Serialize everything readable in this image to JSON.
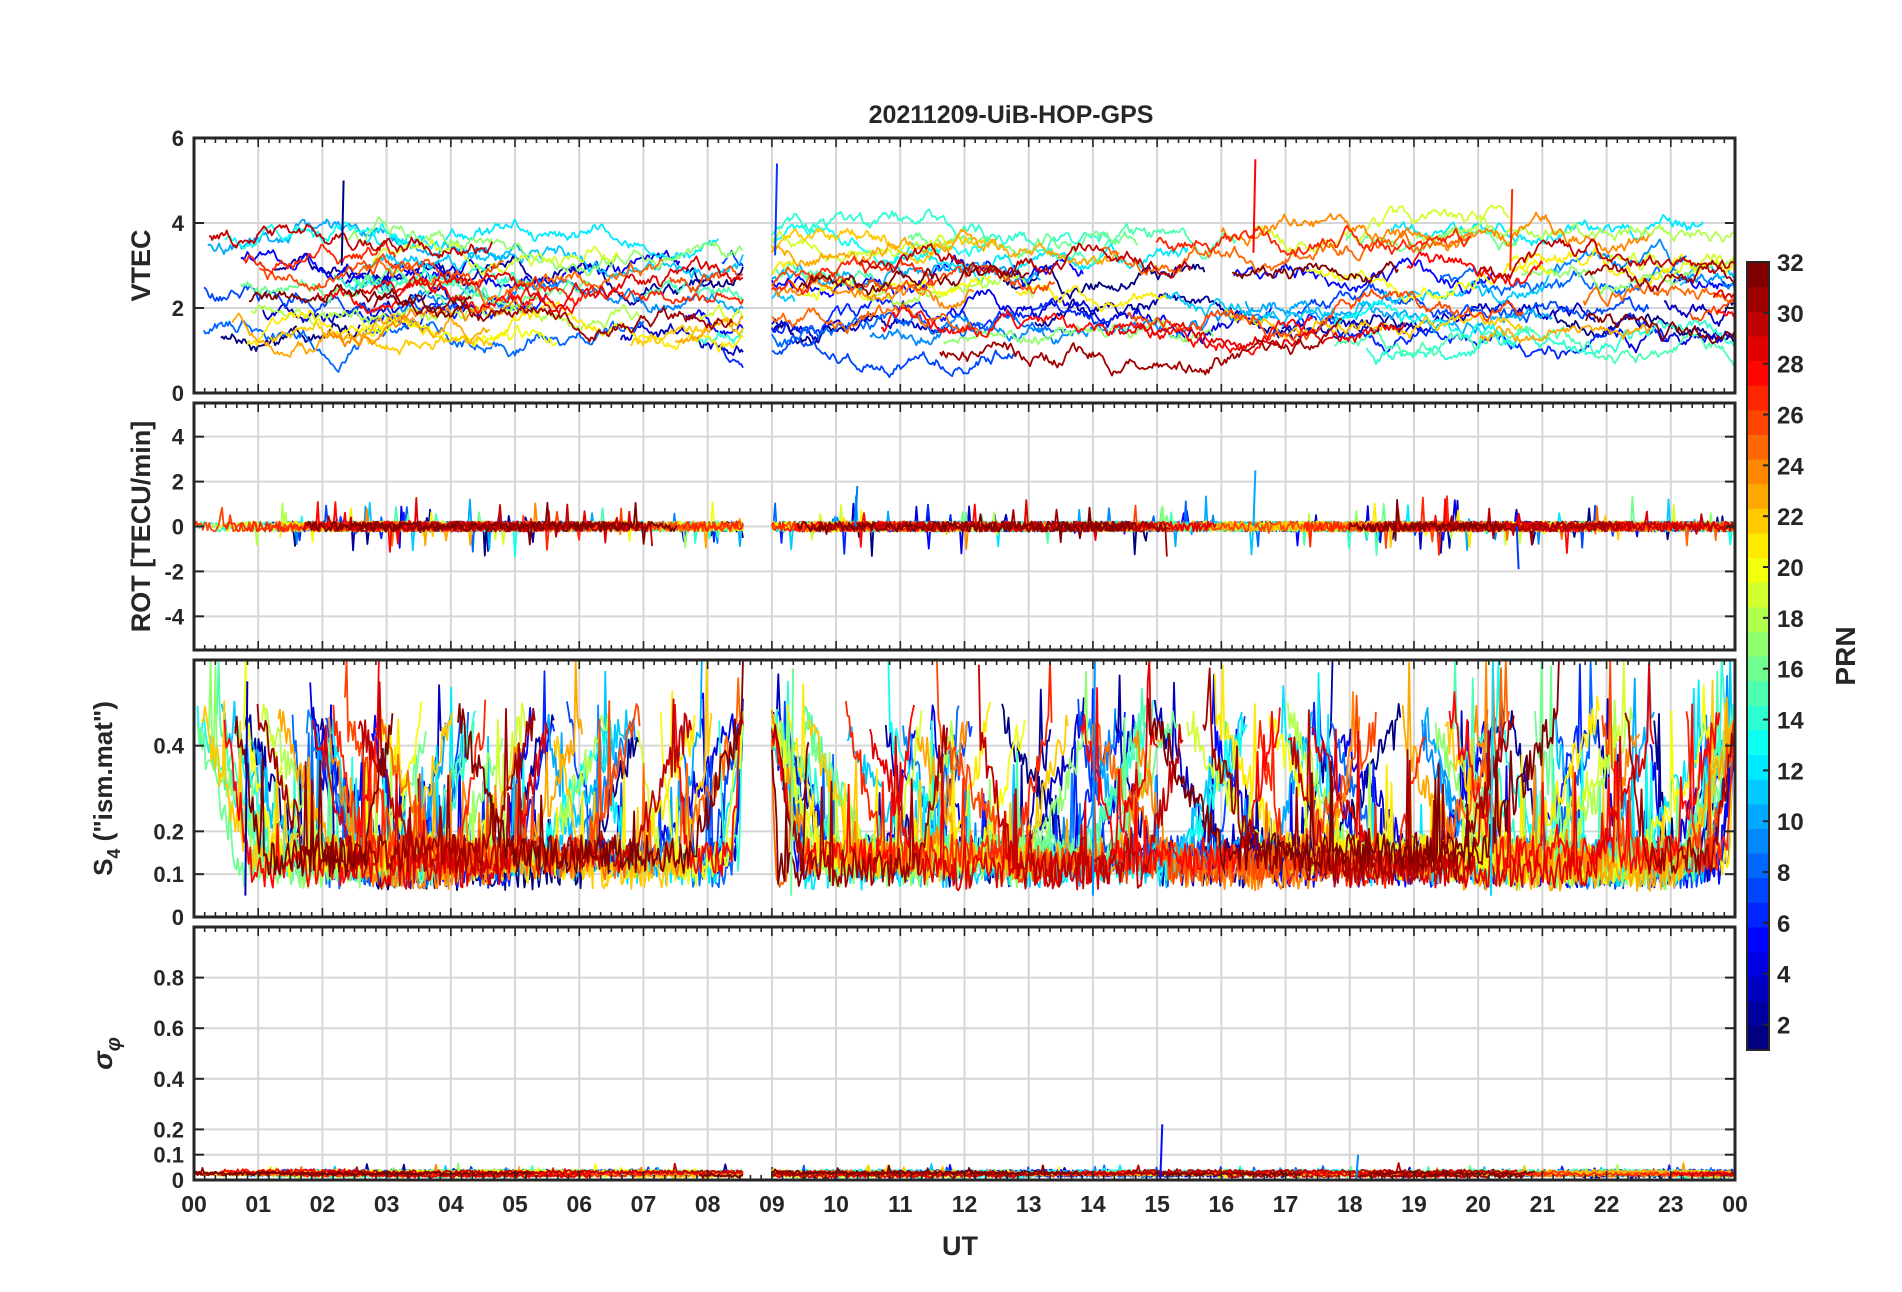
{
  "chart_data": {
    "type": "line",
    "title": "20211209-UiB-HOP-GPS",
    "xlabel": "UT",
    "x_range_hours": [
      0,
      24
    ],
    "x_tick_labels": [
      "00",
      "01",
      "02",
      "03",
      "04",
      "05",
      "06",
      "07",
      "08",
      "09",
      "10",
      "11",
      "12",
      "13",
      "14",
      "15",
      "16",
      "17",
      "18",
      "19",
      "20",
      "21",
      "22",
      "23",
      "00"
    ],
    "grid": true,
    "data_gap_hours": [
      8.55,
      9.0
    ],
    "panels": [
      {
        "id": "vtec",
        "ylabel": "VTEC",
        "ylim": [
          0,
          6
        ],
        "y_ticks": [
          0,
          2,
          4,
          6
        ],
        "y_tick_labels": [
          "0",
          "2",
          "4",
          "6"
        ],
        "typical_range": [
          0.5,
          5.5
        ],
        "notable_values": [
          {
            "x": 2.3,
            "y": 5.0
          },
          {
            "x": 16.5,
            "y": 5.5
          },
          {
            "x": 20.5,
            "y": 4.8
          },
          {
            "x": 9.05,
            "y": 5.4
          }
        ]
      },
      {
        "id": "rot",
        "ylabel": "ROT [TECU/min]",
        "ylim": [
          -5.5,
          5.5
        ],
        "y_ticks": [
          -4,
          -2,
          0,
          2,
          4
        ],
        "y_tick_labels": [
          "-4",
          "-2",
          "0",
          "2",
          "4"
        ],
        "typical_range": [
          -0.5,
          0.5
        ],
        "notable_values": [
          {
            "x": 16.5,
            "y": 2.5
          },
          {
            "x": 20.6,
            "y": -1.9
          },
          {
            "x": 10.3,
            "y": 1.8
          }
        ]
      },
      {
        "id": "s4",
        "ylabel": "S4 (\"ism.mat\")",
        "ylim": [
          0,
          0.6
        ],
        "y_ticks": [
          0,
          0.1,
          0.2,
          0.4
        ],
        "y_tick_labels": [
          "0",
          "0.1",
          "0.2",
          "0.4"
        ],
        "typical_range": [
          0.05,
          0.3
        ],
        "notable_values": [
          {
            "x": 0.8,
            "y": 0.55
          },
          {
            "x": 9.3,
            "y": 0.58
          },
          {
            "x": 14.0,
            "y": 0.6
          },
          {
            "x": 20.2,
            "y": 0.6
          }
        ]
      },
      {
        "id": "sigma",
        "ylabel": "σφ",
        "ylim": [
          0,
          1
        ],
        "y_ticks": [
          0,
          0.1,
          0.2,
          0.4,
          0.6,
          0.8
        ],
        "y_tick_labels": [
          "0",
          "0.1",
          "0.2",
          "0.4",
          "0.6",
          "0.8"
        ],
        "typical_range": [
          0.0,
          0.04
        ],
        "notable_values": [
          {
            "x": 15.05,
            "y": 0.22
          },
          {
            "x": 18.1,
            "y": 0.1
          }
        ]
      }
    ],
    "colorbar": {
      "label": "PRN",
      "range": [
        1,
        32
      ],
      "colormap": "jet",
      "tick_values": [
        2,
        4,
        6,
        8,
        10,
        12,
        14,
        16,
        18,
        20,
        22,
        24,
        26,
        28,
        30,
        32
      ],
      "tick_labels": [
        "2",
        "4",
        "6",
        "8",
        "10",
        "12",
        "14",
        "16",
        "18",
        "20",
        "22",
        "24",
        "26",
        "28",
        "30",
        "32"
      ]
    },
    "series_prns": [
      1,
      2,
      3,
      4,
      5,
      6,
      7,
      8,
      9,
      10,
      11,
      12,
      13,
      14,
      15,
      16,
      17,
      18,
      19,
      20,
      21,
      22,
      23,
      24,
      25,
      26,
      27,
      28,
      29,
      30,
      31,
      32
    ]
  }
}
